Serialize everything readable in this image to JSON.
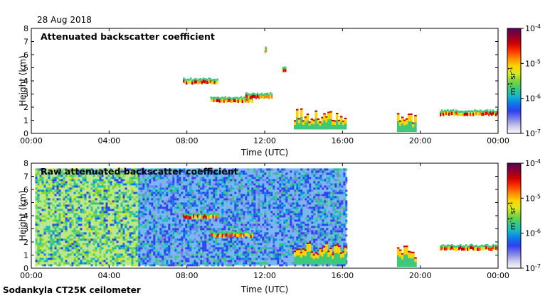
{
  "date": "28 Aug 2018",
  "footer": "Sodankyla CT25K ceilometer",
  "colorbar": {
    "unit_main": "m",
    "unit_exp1": "-1",
    "unit_mid": " sr",
    "unit_exp2": "-1",
    "colors": [
      "#fbfbfd",
      "#c7c7e7",
      "#7b7be9",
      "#2f3ff0",
      "#0c7be8",
      "#14b9c8",
      "#3ec87c",
      "#7fd43c",
      "#d8ea1e",
      "#ffd400",
      "#ff8a00",
      "#ff3000",
      "#cc0000",
      "#8b0030",
      "#5a005a"
    ]
  },
  "chart_data": [
    {
      "type": "heatmap",
      "title": "Attenuated backscatter coefficient",
      "xlabel": "Time (UTC)",
      "ylabel": "Height (km)",
      "xticks": [
        "00:00",
        "04:00",
        "08:00",
        "12:00",
        "16:00",
        "20:00",
        "00:00"
      ],
      "xlim_hours": [
        0,
        24
      ],
      "yticks": [
        "0",
        "1",
        "2",
        "3",
        "4",
        "5",
        "6",
        "7",
        "8"
      ],
      "ylim_km": [
        0,
        8
      ],
      "colorbar": {
        "scale": "log",
        "range": [
          1e-07,
          0.0001
        ],
        "ticks": [
          {
            "base": "10",
            "exp": "-7"
          },
          {
            "base": "10",
            "exp": "-6"
          },
          {
            "base": "10",
            "exp": "-5"
          },
          {
            "base": "10",
            "exp": "-4"
          }
        ]
      },
      "layers": [
        {
          "t": [
            7.8,
            9.6
          ],
          "h": 3.9,
          "level": "high"
        },
        {
          "t": [
            9.2,
            11.4
          ],
          "h": 2.5,
          "level": "high"
        },
        {
          "t": [
            11.0,
            12.4
          ],
          "h": 2.8,
          "level": "medium"
        },
        {
          "t": [
            12.0,
            12.1
          ],
          "h": 6.3,
          "level": "high"
        },
        {
          "t": [
            12.9,
            13.1
          ],
          "h": 4.8,
          "level": "high"
        },
        {
          "t": [
            13.5,
            16.2
          ],
          "h": [
            0.3,
            2.0
          ],
          "level": "high"
        },
        {
          "t": [
            18.8,
            19.8
          ],
          "h": [
            0.1,
            1.8
          ],
          "level": "high"
        },
        {
          "t": [
            21.0,
            24.0
          ],
          "h": 1.5,
          "level": "medium"
        }
      ]
    },
    {
      "type": "heatmap",
      "title": "Raw attenuated backscatter coefficient",
      "xlabel": "Time (UTC)",
      "ylabel": "Height (km)",
      "xticks": [
        "00:00",
        "04:00",
        "08:00",
        "12:00",
        "16:00",
        "20:00",
        "00:00"
      ],
      "xlim_hours": [
        0,
        24
      ],
      "yticks": [
        "0",
        "1",
        "2",
        "3",
        "4",
        "5",
        "6",
        "7",
        "8"
      ],
      "ylim_km": [
        0,
        8
      ],
      "colorbar": {
        "scale": "log",
        "range": [
          1e-07,
          0.0001
        ],
        "ticks": [
          {
            "base": "10",
            "exp": "-7"
          },
          {
            "base": "10",
            "exp": "-6"
          },
          {
            "base": "10",
            "exp": "-5"
          },
          {
            "base": "10",
            "exp": "-4"
          }
        ]
      },
      "layers": [
        {
          "t": [
            0.2,
            5.5
          ],
          "h": [
            0.2,
            7.6
          ],
          "level": "noise-high"
        },
        {
          "t": [
            5.5,
            16.2
          ],
          "h": [
            0.2,
            7.6
          ],
          "level": "noise-medium"
        },
        {
          "t": [
            7.8,
            9.6
          ],
          "h": 3.9,
          "level": "high"
        },
        {
          "t": [
            9.2,
            11.4
          ],
          "h": 2.5,
          "level": "high"
        },
        {
          "t": [
            13.5,
            16.2
          ],
          "h": [
            0.3,
            2.0
          ],
          "level": "high"
        },
        {
          "t": [
            18.8,
            19.8
          ],
          "h": [
            0.1,
            1.8
          ],
          "level": "high"
        },
        {
          "t": [
            21.0,
            24.0
          ],
          "h": 1.5,
          "level": "medium"
        }
      ]
    }
  ]
}
